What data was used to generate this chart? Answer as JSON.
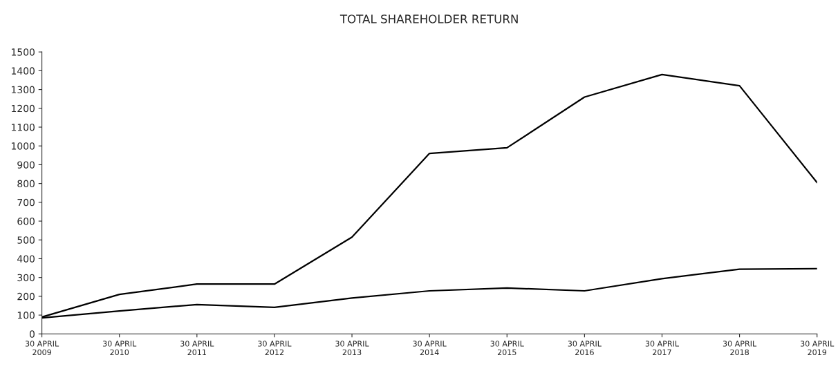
{
  "chart_data": {
    "type": "line",
    "title": "TOTAL SHAREHOLDER RETURN",
    "categories": [
      "30 APRIL\n2009",
      "30 APRIL\n2010",
      "30 APRIL\n2011",
      "30 APRIL\n2012",
      "30 APRIL\n2013",
      "30 APRIL\n2014",
      "30 APRIL\n2015",
      "30 APRIL\n2016",
      "30 APRIL\n2017",
      "30 APRIL\n2018",
      "30 APRIL\n2019"
    ],
    "series": [
      {
        "color": "#000000",
        "values": [
          90,
          210,
          265,
          265,
          515,
          960,
          990,
          1260,
          1380,
          1320,
          805
        ]
      },
      {
        "color": "#000000",
        "values": [
          85,
          122,
          156,
          141,
          191,
          229,
          244,
          229,
          294,
          344,
          347
        ]
      }
    ],
    "ylim": [
      0,
      1500
    ],
    "yticks": [
      0,
      100,
      200,
      300,
      400,
      500,
      600,
      700,
      800,
      900,
      1000,
      1100,
      1200,
      1300,
      1400,
      1500
    ],
    "grid": false,
    "marker": "none",
    "line_style": "solid"
  }
}
